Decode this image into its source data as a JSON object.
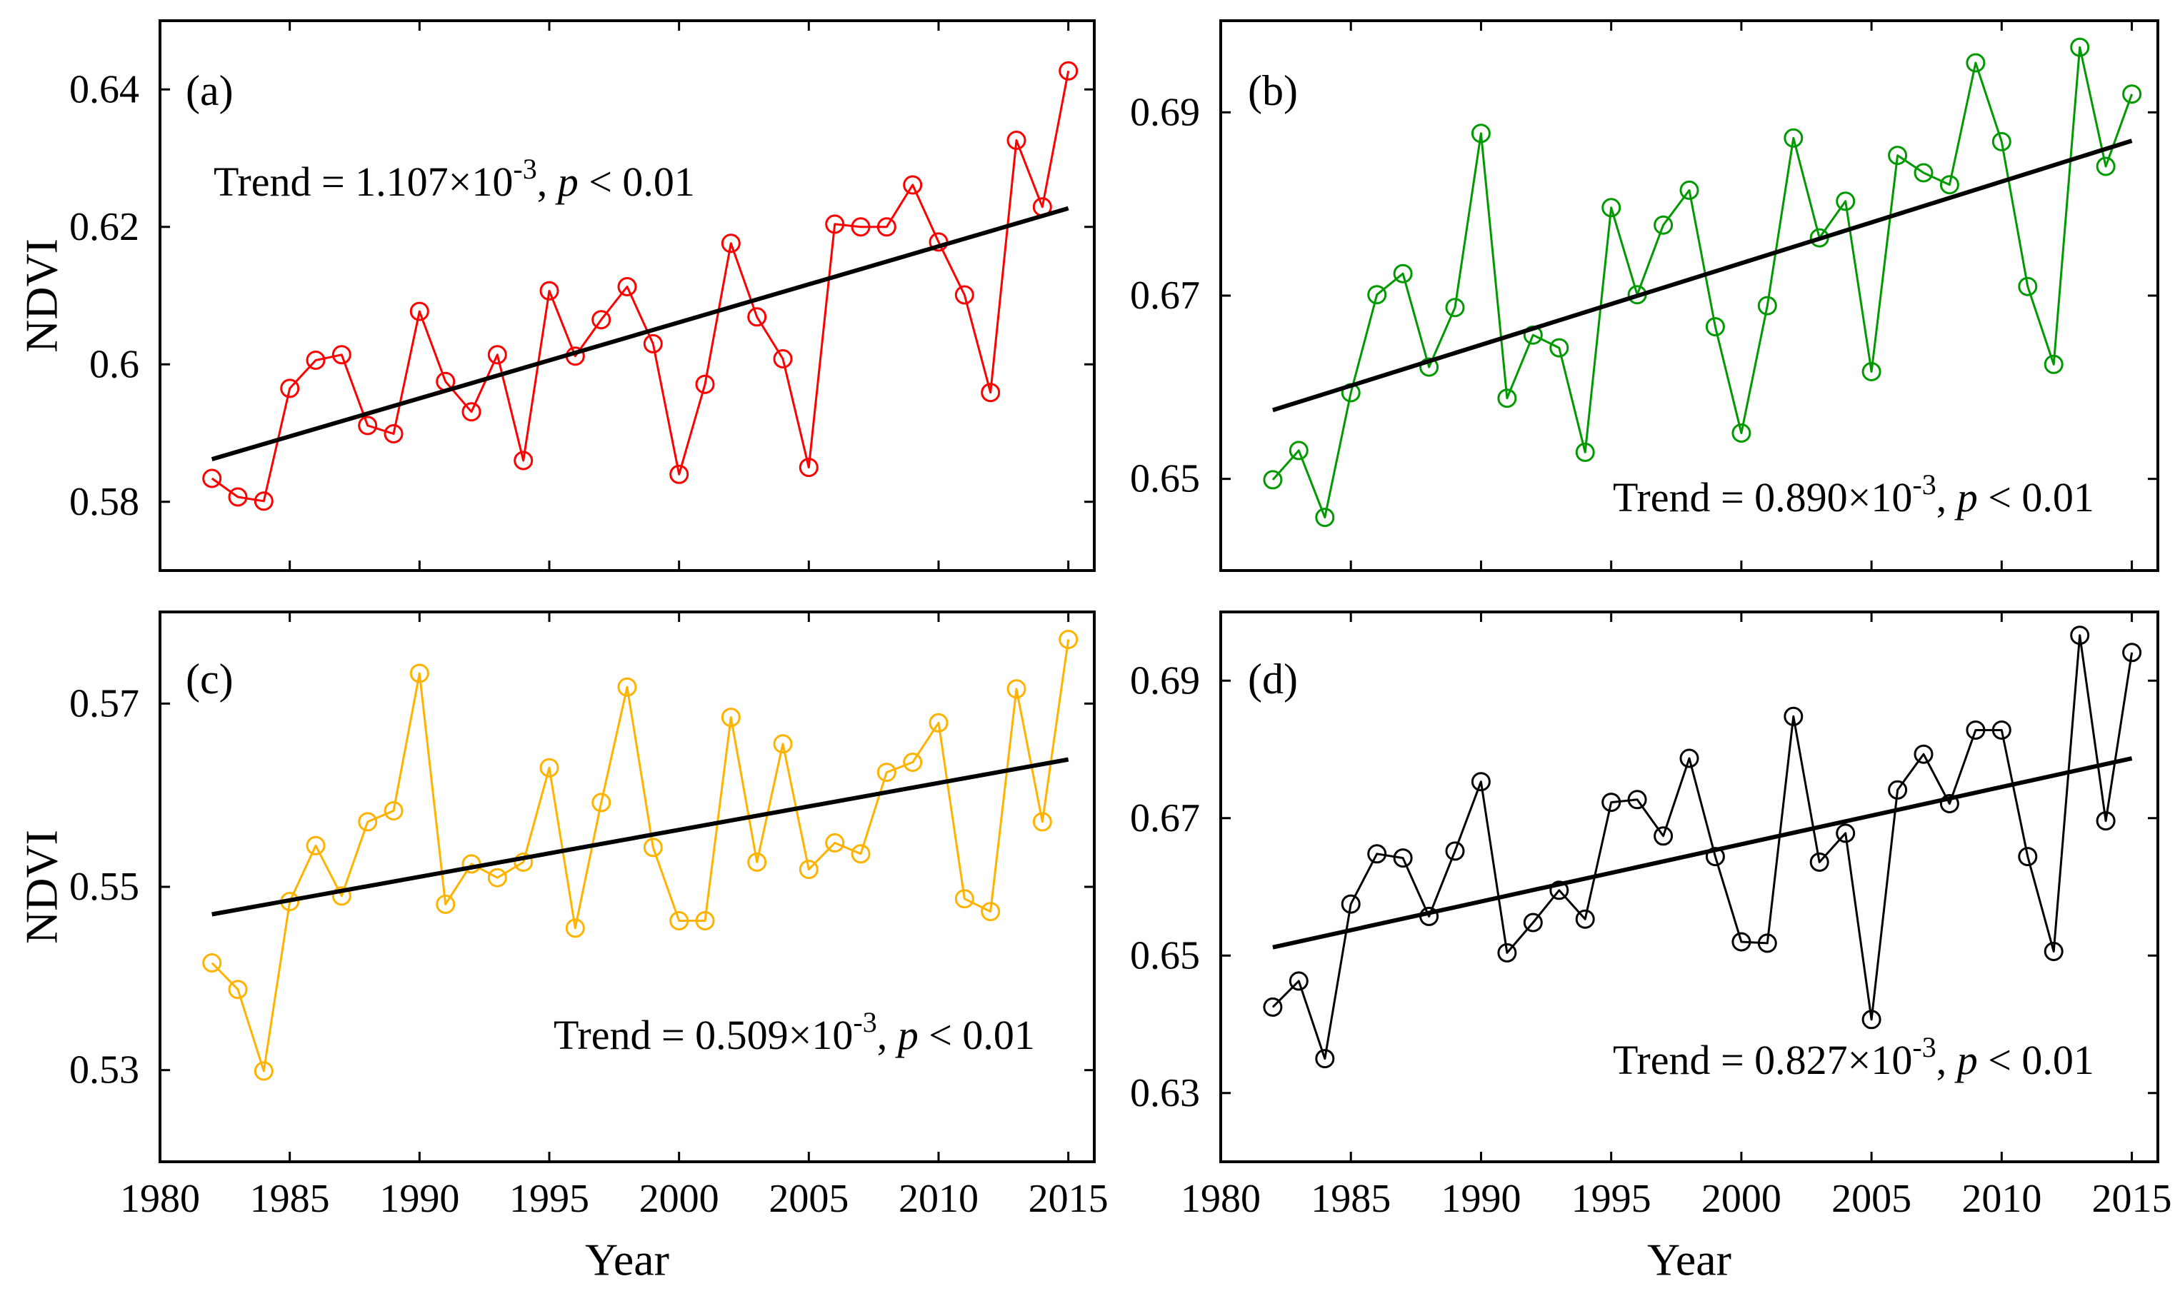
{
  "chart_data": [
    {
      "type": "line",
      "panel_label": "(a)",
      "color": "#ff0000",
      "x": [
        1982,
        1983,
        1984,
        1985,
        1986,
        1987,
        1988,
        1989,
        1990,
        1991,
        1992,
        1993,
        1994,
        1995,
        1996,
        1997,
        1998,
        1999,
        2000,
        2001,
        2002,
        2003,
        2004,
        2005,
        2006,
        2007,
        2008,
        2009,
        2010,
        2011,
        2012,
        2013,
        2014,
        2015
      ],
      "ndvi": [
        0.5834,
        0.5807,
        0.5801,
        0.5965,
        0.6006,
        0.6014,
        0.5911,
        0.5899,
        0.6077,
        0.5975,
        0.5931,
        0.6014,
        0.586,
        0.6107,
        0.6012,
        0.6065,
        0.6113,
        0.603,
        0.584,
        0.5971,
        0.6176,
        0.6069,
        0.6008,
        0.585,
        0.6204,
        0.62,
        0.62,
        0.6261,
        0.6178,
        0.6101,
        0.5959,
        0.6326,
        0.6229,
        0.6427
      ],
      "trend": {
        "x": [
          1982,
          2015
        ],
        "y": [
          0.5862,
          0.6227
        ]
      },
      "xlim": [
        1980,
        2016
      ],
      "ylim": [
        0.57,
        0.65
      ],
      "xticks": [
        1980,
        1985,
        1990,
        1995,
        2000,
        2005,
        2010,
        2015
      ],
      "yticks": [
        0.58,
        0.6,
        0.62,
        0.64
      ],
      "ytick_labels": [
        "0.58",
        "0.6",
        "0.62",
        "0.64"
      ],
      "ylabel": "NDVI",
      "annotation": {
        "equation": "Trend = 1.107×10",
        "exponent": "-3",
        "separator": ", ",
        "p_symbol": "p",
        "p_threshold": " < 0.01"
      }
    },
    {
      "type": "line",
      "panel_label": "(b)",
      "color": "#009900",
      "x": [
        1982,
        1983,
        1984,
        1985,
        1986,
        1987,
        1988,
        1989,
        1990,
        1991,
        1992,
        1993,
        1994,
        1995,
        1996,
        1997,
        1998,
        1999,
        2000,
        2001,
        2002,
        2003,
        2004,
        2005,
        2006,
        2007,
        2008,
        2009,
        2010,
        2011,
        2012,
        2013,
        2014,
        2015
      ],
      "ndvi": [
        0.6499,
        0.6531,
        0.6458,
        0.6594,
        0.6701,
        0.6724,
        0.6622,
        0.6687,
        0.6877,
        0.6588,
        0.6657,
        0.6643,
        0.6529,
        0.6796,
        0.6701,
        0.6777,
        0.6815,
        0.6666,
        0.655,
        0.6689,
        0.6872,
        0.6763,
        0.6803,
        0.6617,
        0.6853,
        0.6834,
        0.6821,
        0.6954,
        0.6868,
        0.671,
        0.6625,
        0.6971,
        0.6841,
        0.692
      ],
      "trend": {
        "x": [
          1982,
          2015
        ],
        "y": [
          0.6575,
          0.6869
        ]
      },
      "xlim": [
        1980,
        2016
      ],
      "ylim": [
        0.64,
        0.7
      ],
      "xticks": [
        1980,
        1985,
        1990,
        1995,
        2000,
        2005,
        2010,
        2015
      ],
      "yticks": [
        0.65,
        0.67,
        0.69
      ],
      "ytick_labels": [
        "0.65",
        "0.67",
        "0.69"
      ],
      "annotation": {
        "equation": "Trend = 0.890×10",
        "exponent": "-3",
        "separator": ", ",
        "p_symbol": "p",
        "p_threshold": " < 0.01"
      }
    },
    {
      "type": "line",
      "panel_label": "(c)",
      "color": "#ffb300",
      "x": [
        1982,
        1983,
        1984,
        1985,
        1986,
        1987,
        1988,
        1989,
        1990,
        1991,
        1992,
        1993,
        1994,
        1995,
        1996,
        1997,
        1998,
        1999,
        2000,
        2001,
        2002,
        2003,
        2004,
        2005,
        2006,
        2007,
        2008,
        2009,
        2010,
        2011,
        2012,
        2013,
        2014,
        2015
      ],
      "ndvi": [
        0.5417,
        0.5388,
        0.5299,
        0.5484,
        0.5545,
        0.549,
        0.5571,
        0.5583,
        0.5733,
        0.5481,
        0.5525,
        0.551,
        0.5527,
        0.563,
        0.5455,
        0.5592,
        0.5718,
        0.5543,
        0.5463,
        0.5463,
        0.5685,
        0.5527,
        0.5656,
        0.5519,
        0.5548,
        0.5536,
        0.5625,
        0.5636,
        0.5679,
        0.5487,
        0.5473,
        0.5716,
        0.5571,
        0.577
      ],
      "trend": {
        "x": [
          1982,
          2015
        ],
        "y": [
          0.547,
          0.5639
        ]
      },
      "xlim": [
        1980,
        2016
      ],
      "ylim": [
        0.52,
        0.58
      ],
      "xticks": [
        1980,
        1985,
        1990,
        1995,
        2000,
        2005,
        2010,
        2015
      ],
      "xtick_labels": [
        "1980",
        "1985",
        "1990",
        "1995",
        "2000",
        "2005",
        "2010",
        "2015"
      ],
      "yticks": [
        0.53,
        0.55,
        0.57
      ],
      "ytick_labels": [
        "0.53",
        "0.55",
        "0.57"
      ],
      "xlabel": "Year",
      "ylabel": "NDVI",
      "annotation": {
        "equation": "Trend = 0.509×10",
        "exponent": "-3",
        "separator": ", ",
        "p_symbol": "p",
        "p_threshold": " < 0.01"
      }
    },
    {
      "type": "line",
      "panel_label": "(d)",
      "color": "#000000",
      "x": [
        1982,
        1983,
        1984,
        1985,
        1986,
        1987,
        1988,
        1989,
        1990,
        1991,
        1992,
        1993,
        1994,
        1995,
        1996,
        1997,
        1998,
        1999,
        2000,
        2001,
        2002,
        2003,
        2004,
        2005,
        2006,
        2007,
        2008,
        2009,
        2010,
        2011,
        2012,
        2013,
        2014,
        2015
      ],
      "ndvi": [
        0.6425,
        0.6463,
        0.635,
        0.6575,
        0.6648,
        0.6642,
        0.6557,
        0.6652,
        0.6753,
        0.6504,
        0.6548,
        0.6595,
        0.6553,
        0.6723,
        0.6727,
        0.6674,
        0.6787,
        0.6644,
        0.652,
        0.6518,
        0.6848,
        0.6636,
        0.6678,
        0.6407,
        0.6741,
        0.6793,
        0.6721,
        0.6828,
        0.6828,
        0.6644,
        0.6506,
        0.6966,
        0.6696,
        0.6941
      ],
      "trend": {
        "x": [
          1982,
          2015
        ],
        "y": [
          0.6512,
          0.6787
        ]
      },
      "xlim": [
        1980,
        2016
      ],
      "ylim": [
        0.62,
        0.7
      ],
      "xticks": [
        1980,
        1985,
        1990,
        1995,
        2000,
        2005,
        2010,
        2015
      ],
      "xtick_labels": [
        "1980",
        "1985",
        "1990",
        "1995",
        "2000",
        "2005",
        "2010",
        "2015"
      ],
      "yticks": [
        0.63,
        0.65,
        0.67,
        0.69
      ],
      "ytick_labels": [
        "0.63",
        "0.65",
        "0.67",
        "0.69"
      ],
      "xlabel": "Year",
      "annotation": {
        "equation": "Trend = 0.827×10",
        "exponent": "-3",
        "separator": ", ",
        "p_symbol": "p",
        "p_threshold": " < 0.01"
      }
    }
  ]
}
